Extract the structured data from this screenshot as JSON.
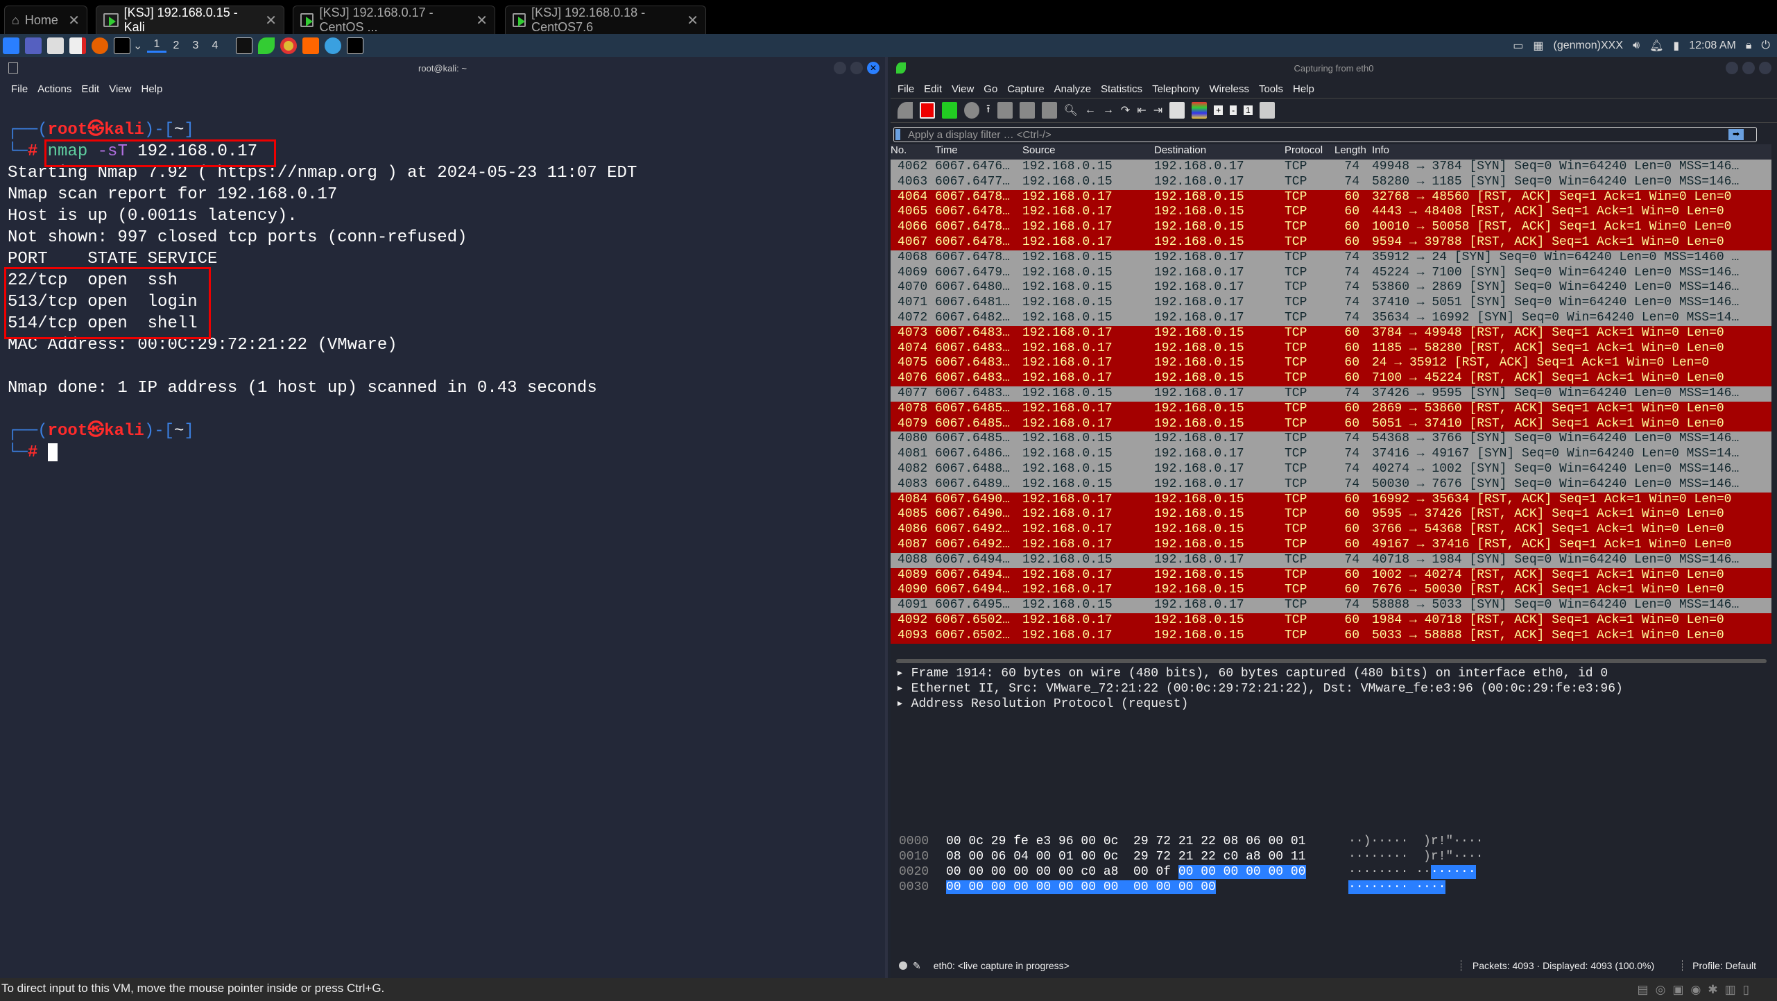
{
  "tabs": [
    {
      "label": "Home",
      "icon": "home-icon"
    },
    {
      "label": "[KSJ] 192.168.0.15 - Kali",
      "active": true
    },
    {
      "label": "[KSJ] 192.168.0.17 - CentOS ..."
    },
    {
      "label": "[KSJ] 192.168.0.18 - CentOS7.6"
    }
  ],
  "panel": {
    "workspaces": [
      "1",
      "2",
      "3",
      "4"
    ],
    "genmon": "(genmon)XXX",
    "clock": "12:08 AM"
  },
  "terminal": {
    "title": "root@kali: ~",
    "menu": [
      "File",
      "Actions",
      "Edit",
      "View",
      "Help"
    ],
    "prompt_user": "root",
    "prompt_at": "㉿",
    "prompt_host": "kali",
    "prompt_dir": "~",
    "cmd": "nmap",
    "cmd_flag": "-sT",
    "cmd_arg": "192.168.0.17",
    "output": [
      "Starting Nmap 7.92 ( https://nmap.org ) at 2024-05-23 11:07 EDT",
      "Nmap scan report for 192.168.0.17",
      "Host is up (0.0011s latency).",
      "Not shown: 997 closed tcp ports (conn-refused)",
      "PORT    STATE SERVICE",
      "22/tcp  open  ssh",
      "513/tcp open  login",
      "514/tcp open  shell",
      "MAC Address: 00:0C:29:72:21:22 (VMware)",
      "",
      "Nmap done: 1 IP address (1 host up) scanned in 0.43 seconds"
    ]
  },
  "wireshark": {
    "title": "Capturing from eth0",
    "menu": [
      "File",
      "Edit",
      "View",
      "Go",
      "Capture",
      "Analyze",
      "Statistics",
      "Telephony",
      "Wireless",
      "Tools",
      "Help"
    ],
    "filter_placeholder": "Apply a display filter … <Ctrl-/>",
    "columns": [
      "No.",
      "Time",
      "Source",
      "Destination",
      "Protocol",
      "Length",
      "Info"
    ],
    "colors": {
      "syn_bg": "#a0a0a0",
      "rst_bg": "#a40000",
      "rst_fg": "#fffc9c"
    },
    "packets": [
      [
        "4062",
        "6067.6476…",
        "192.168.0.15",
        "192.168.0.17",
        "TCP",
        "74",
        "49948 → 3784 [SYN] Seq=0 Win=64240 Len=0 MSS=146…"
      ],
      [
        "4063",
        "6067.6477…",
        "192.168.0.15",
        "192.168.0.17",
        "TCP",
        "74",
        "58280 → 1185 [SYN] Seq=0 Win=64240 Len=0 MSS=146…"
      ],
      [
        "4064",
        "6067.6478…",
        "192.168.0.17",
        "192.168.0.15",
        "TCP",
        "60",
        "32768 → 48560 [RST, ACK] Seq=1 Ack=1 Win=0 Len=0"
      ],
      [
        "4065",
        "6067.6478…",
        "192.168.0.17",
        "192.168.0.15",
        "TCP",
        "60",
        "4443 → 48408 [RST, ACK] Seq=1 Ack=1 Win=0 Len=0"
      ],
      [
        "4066",
        "6067.6478…",
        "192.168.0.17",
        "192.168.0.15",
        "TCP",
        "60",
        "10010 → 50058 [RST, ACK] Seq=1 Ack=1 Win=0 Len=0"
      ],
      [
        "4067",
        "6067.6478…",
        "192.168.0.17",
        "192.168.0.15",
        "TCP",
        "60",
        "9594 → 39788 [RST, ACK] Seq=1 Ack=1 Win=0 Len=0"
      ],
      [
        "4068",
        "6067.6478…",
        "192.168.0.15",
        "192.168.0.17",
        "TCP",
        "74",
        "35912 → 24 [SYN] Seq=0 Win=64240 Len=0 MSS=1460 …"
      ],
      [
        "4069",
        "6067.6479…",
        "192.168.0.15",
        "192.168.0.17",
        "TCP",
        "74",
        "45224 → 7100 [SYN] Seq=0 Win=64240 Len=0 MSS=146…"
      ],
      [
        "4070",
        "6067.6480…",
        "192.168.0.15",
        "192.168.0.17",
        "TCP",
        "74",
        "53860 → 2869 [SYN] Seq=0 Win=64240 Len=0 MSS=146…"
      ],
      [
        "4071",
        "6067.6481…",
        "192.168.0.15",
        "192.168.0.17",
        "TCP",
        "74",
        "37410 → 5051 [SYN] Seq=0 Win=64240 Len=0 MSS=146…"
      ],
      [
        "4072",
        "6067.6482…",
        "192.168.0.15",
        "192.168.0.17",
        "TCP",
        "74",
        "35634 → 16992 [SYN] Seq=0 Win=64240 Len=0 MSS=14…"
      ],
      [
        "4073",
        "6067.6483…",
        "192.168.0.17",
        "192.168.0.15",
        "TCP",
        "60",
        "3784 → 49948 [RST, ACK] Seq=1 Ack=1 Win=0 Len=0"
      ],
      [
        "4074",
        "6067.6483…",
        "192.168.0.17",
        "192.168.0.15",
        "TCP",
        "60",
        "1185 → 58280 [RST, ACK] Seq=1 Ack=1 Win=0 Len=0"
      ],
      [
        "4075",
        "6067.6483…",
        "192.168.0.17",
        "192.168.0.15",
        "TCP",
        "60",
        "24 → 35912 [RST, ACK] Seq=1 Ack=1 Win=0 Len=0"
      ],
      [
        "4076",
        "6067.6483…",
        "192.168.0.17",
        "192.168.0.15",
        "TCP",
        "60",
        "7100 → 45224 [RST, ACK] Seq=1 Ack=1 Win=0 Len=0"
      ],
      [
        "4077",
        "6067.6483…",
        "192.168.0.15",
        "192.168.0.17",
        "TCP",
        "74",
        "37426 → 9595 [SYN] Seq=0 Win=64240 Len=0 MSS=146…"
      ],
      [
        "4078",
        "6067.6485…",
        "192.168.0.17",
        "192.168.0.15",
        "TCP",
        "60",
        "2869 → 53860 [RST, ACK] Seq=1 Ack=1 Win=0 Len=0"
      ],
      [
        "4079",
        "6067.6485…",
        "192.168.0.17",
        "192.168.0.15",
        "TCP",
        "60",
        "5051 → 37410 [RST, ACK] Seq=1 Ack=1 Win=0 Len=0"
      ],
      [
        "4080",
        "6067.6485…",
        "192.168.0.15",
        "192.168.0.17",
        "TCP",
        "74",
        "54368 → 3766 [SYN] Seq=0 Win=64240 Len=0 MSS=146…"
      ],
      [
        "4081",
        "6067.6486…",
        "192.168.0.15",
        "192.168.0.17",
        "TCP",
        "74",
        "37416 → 49167 [SYN] Seq=0 Win=64240 Len=0 MSS=14…"
      ],
      [
        "4082",
        "6067.6488…",
        "192.168.0.15",
        "192.168.0.17",
        "TCP",
        "74",
        "40274 → 1002 [SYN] Seq=0 Win=64240 Len=0 MSS=146…"
      ],
      [
        "4083",
        "6067.6489…",
        "192.168.0.15",
        "192.168.0.17",
        "TCP",
        "74",
        "50030 → 7676 [SYN] Seq=0 Win=64240 Len=0 MSS=146…"
      ],
      [
        "4084",
        "6067.6490…",
        "192.168.0.17",
        "192.168.0.15",
        "TCP",
        "60",
        "16992 → 35634 [RST, ACK] Seq=1 Ack=1 Win=0 Len=0"
      ],
      [
        "4085",
        "6067.6490…",
        "192.168.0.17",
        "192.168.0.15",
        "TCP",
        "60",
        "9595 → 37426 [RST, ACK] Seq=1 Ack=1 Win=0 Len=0"
      ],
      [
        "4086",
        "6067.6492…",
        "192.168.0.17",
        "192.168.0.15",
        "TCP",
        "60",
        "3766 → 54368 [RST, ACK] Seq=1 Ack=1 Win=0 Len=0"
      ],
      [
        "4087",
        "6067.6492…",
        "192.168.0.17",
        "192.168.0.15",
        "TCP",
        "60",
        "49167 → 37416 [RST, ACK] Seq=1 Ack=1 Win=0 Len=0"
      ],
      [
        "4088",
        "6067.6494…",
        "192.168.0.15",
        "192.168.0.17",
        "TCP",
        "74",
        "40718 → 1984 [SYN] Seq=0 Win=64240 Len=0 MSS=146…"
      ],
      [
        "4089",
        "6067.6494…",
        "192.168.0.17",
        "192.168.0.15",
        "TCP",
        "60",
        "1002 → 40274 [RST, ACK] Seq=1 Ack=1 Win=0 Len=0"
      ],
      [
        "4090",
        "6067.6494…",
        "192.168.0.17",
        "192.168.0.15",
        "TCP",
        "60",
        "7676 → 50030 [RST, ACK] Seq=1 Ack=1 Win=0 Len=0"
      ],
      [
        "4091",
        "6067.6495…",
        "192.168.0.15",
        "192.168.0.17",
        "TCP",
        "74",
        "58888 → 5033 [SYN] Seq=0 Win=64240 Len=0 MSS=146…"
      ],
      [
        "4092",
        "6067.6502…",
        "192.168.0.17",
        "192.168.0.15",
        "TCP",
        "60",
        "1984 → 40718 [RST, ACK] Seq=1 Ack=1 Win=0 Len=0"
      ],
      [
        "4093",
        "6067.6502…",
        "192.168.0.17",
        "192.168.0.15",
        "TCP",
        "60",
        "5033 → 58888 [RST, ACK] Seq=1 Ack=1 Win=0 Len=0"
      ]
    ],
    "details": [
      "Frame 1914: 60 bytes on wire (480 bits), 60 bytes captured (480 bits) on interface eth0, id 0",
      "Ethernet II, Src: VMware_72:21:22 (00:0c:29:72:21:22), Dst: VMware_fe:e3:96 (00:0c:29:fe:e3:96)",
      "Address Resolution Protocol (request)"
    ],
    "hex": [
      {
        "offset": "0000",
        "bytes": "00 0c 29 fe e3 96 00 0c  29 72 21 22 08 06 00 01",
        "sel": "",
        "ascii": "··)·····  )r!\"····",
        "asel": ""
      },
      {
        "offset": "0010",
        "bytes": "08 00 06 04 00 01 00 0c  29 72 21 22 c0 a8 00 11",
        "sel": "",
        "ascii": "········  )r!\"····",
        "asel": ""
      },
      {
        "offset": "0020",
        "bytes": "00 00 00 00 00 00 c0 a8  00 0f ",
        "sel": "00 00 00 00 00 00",
        "ascii": "········ ··",
        "asel": "······"
      },
      {
        "offset": "0030",
        "bytes": "",
        "sel": "00 00 00 00 00 00 00 00  00 00 00 00",
        "ascii": "",
        "asel": "········ ····"
      }
    ],
    "status": {
      "interface": "eth0: <live capture in progress>",
      "packets": "Packets: 4093 · Displayed: 4093 (100.0%)",
      "profile": "Profile: Default"
    }
  },
  "vm_status": "To direct input to this VM, move the mouse pointer inside or press Ctrl+G."
}
